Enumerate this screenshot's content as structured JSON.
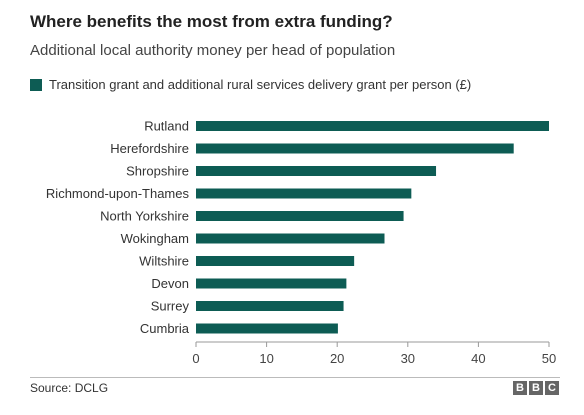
{
  "header": {
    "title": "Where benefits the most from extra funding?",
    "subtitle": "Additional local authority money per head of population"
  },
  "legend": {
    "label": "Transition grant and additional rural services delivery grant per person (£)"
  },
  "footer": {
    "source": "Source: DCLG",
    "logo_letters": [
      "B",
      "B",
      "C"
    ]
  },
  "colors": {
    "bar": "#0d5c54",
    "axis": "#999999"
  },
  "chart_data": {
    "type": "bar",
    "orientation": "horizontal",
    "categories": [
      "Rutland",
      "Herefordshire",
      "Shropshire",
      "Richmond-upon-Thames",
      "North Yorkshire",
      "Wokingham",
      "Wiltshire",
      "Devon",
      "Surrey",
      "Cumbria"
    ],
    "values": [
      50,
      45,
      34,
      30.5,
      29.4,
      26.7,
      22.4,
      21.3,
      20.9,
      20.1
    ],
    "xlim": [
      0,
      50
    ],
    "xticks": [
      "0",
      "10",
      "20",
      "30",
      "40",
      "50"
    ],
    "title": "Where benefits the most from extra funding?",
    "subtitle": "Additional local authority money per head of population",
    "series": [
      {
        "name": "Transition grant and additional rural services delivery grant per person (£)"
      }
    ],
    "grid": false,
    "legend_position": "top-left"
  }
}
